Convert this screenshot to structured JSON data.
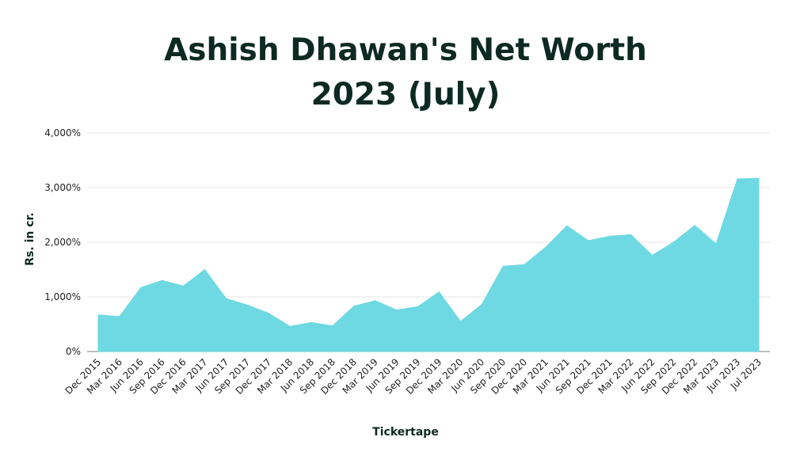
{
  "title_line1": "Ashish Dhawan's Net Worth",
  "title_line2": "2023 (July)",
  "source": "Tickertape",
  "chart_data": {
    "type": "area",
    "ylabel": "Rs. in cr.",
    "ylim": [
      0,
      4000
    ],
    "yticks": [
      0,
      1000,
      2000,
      3000,
      4000
    ],
    "ytick_labels": [
      "0%",
      "1,000%",
      "2,000%",
      "3,000%",
      "4,000%"
    ],
    "grid": true,
    "fill_color": "#6ed9e2",
    "categories": [
      "Dec 2015",
      "Mar 2016",
      "Jun 2016",
      "Sep 2016",
      "Dec 2016",
      "Mar 2017",
      "Jun 2017",
      "Sep 2017",
      "Dec 2017",
      "Mar 2018",
      "Jun 2018",
      "Sep 2018",
      "Dec 2018",
      "Mar 2019",
      "Jun 2019",
      "Sep 2019",
      "Dec 2019",
      "Mar 2020",
      "Jun 2020",
      "Sep 2020",
      "Dec 2020",
      "Mar 2021",
      "Jun 2021",
      "Sep 2021",
      "Dec 2021",
      "Mar 2022",
      "Jun 2022",
      "Sep 2022",
      "Dec 2022",
      "Mar 2023",
      "Jun 2023",
      "Jul 2023"
    ],
    "values": [
      670,
      640,
      1170,
      1300,
      1200,
      1500,
      970,
      850,
      700,
      460,
      530,
      470,
      830,
      930,
      760,
      820,
      1090,
      550,
      860,
      1560,
      1590,
      1910,
      2300,
      2030,
      2110,
      2140,
      1760,
      2000,
      2310,
      1970,
      3160,
      3170
    ]
  }
}
